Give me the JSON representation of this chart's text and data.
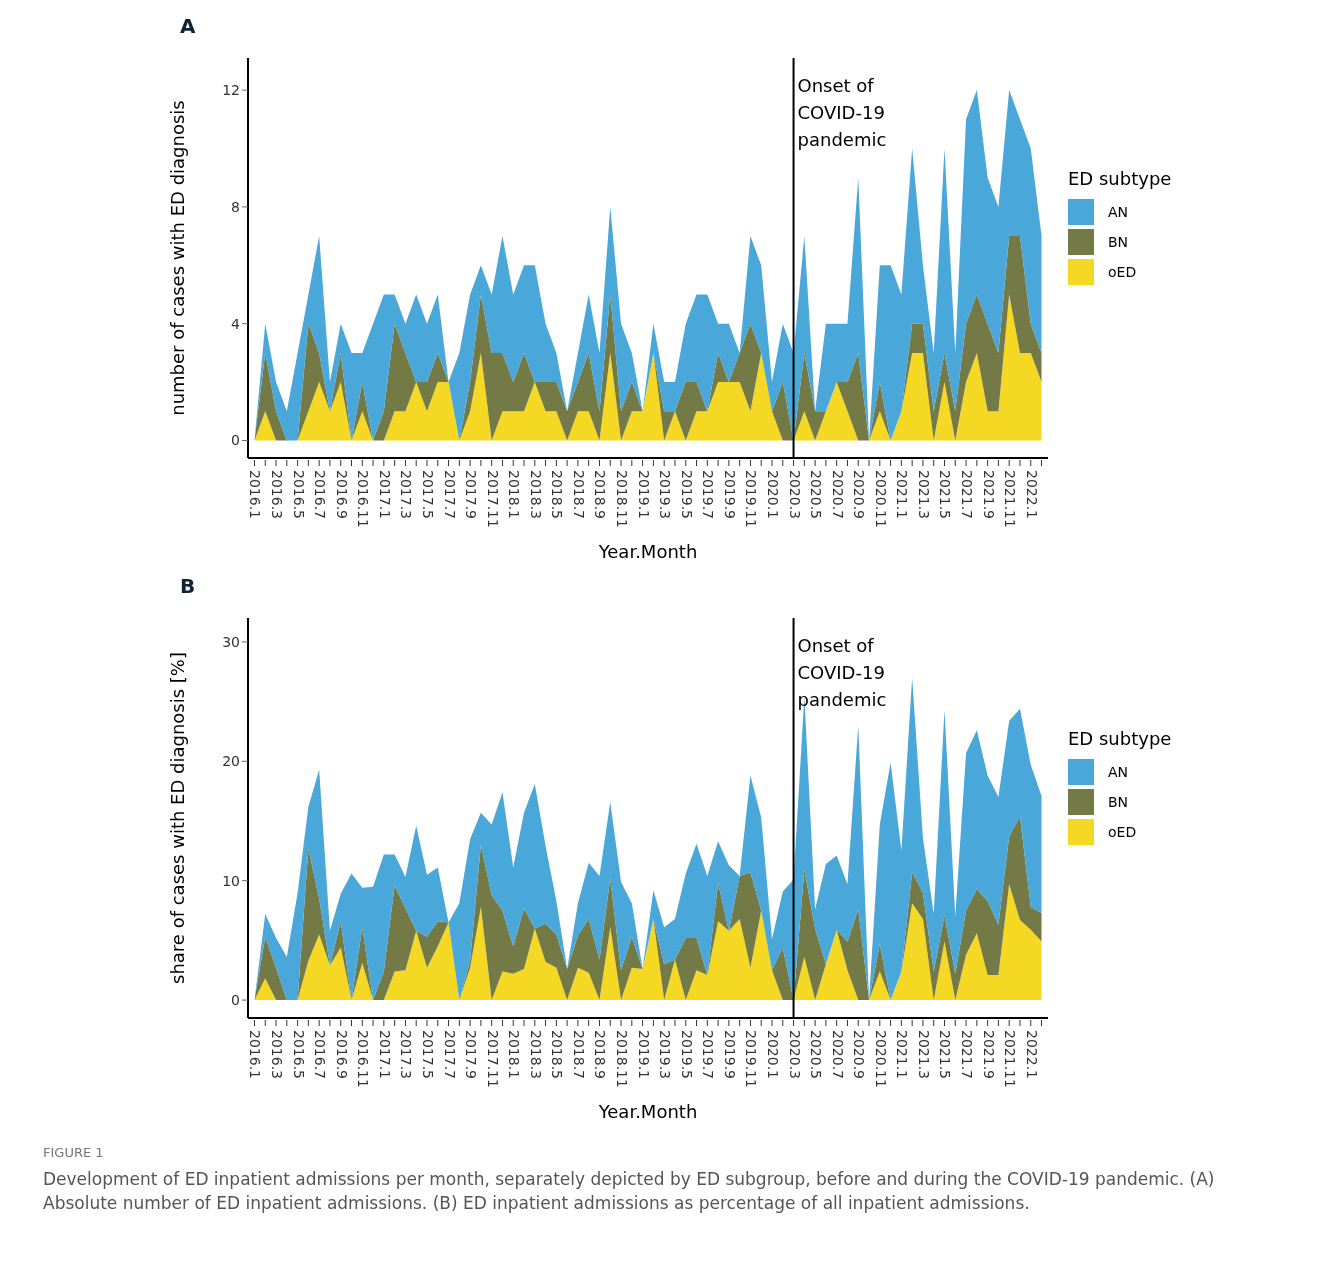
{
  "chart_data": [
    {
      "type": "area",
      "title": "A",
      "xlabel": "Year.Month",
      "ylabel": "number of cases with ED diagnosis",
      "legend_title": "ED subtype",
      "legend": "right",
      "stacked": true,
      "categories": [
        "2016.1",
        null,
        "2016.3",
        null,
        "2016.5",
        null,
        "2016.7",
        null,
        "2016.9",
        null,
        "2016.11",
        null,
        "2017.1",
        null,
        "2017.3",
        null,
        "2017.5",
        null,
        "2017.7",
        null,
        "2017.9",
        null,
        "2017.11",
        null,
        "2018.1",
        null,
        "2018.3",
        null,
        "2018.5",
        null,
        "2018.7",
        null,
        "2018.9",
        null,
        "2018.11",
        null,
        "2019.1",
        null,
        "2019.3",
        null,
        "2019.5",
        null,
        "2019.7",
        null,
        "2019.9",
        null,
        "2019.11",
        null,
        "2020.1",
        null,
        "2020.3",
        null,
        "2020.5",
        null,
        "2020.7",
        null,
        "2020.9",
        null,
        "2020.11",
        null,
        "2021.1",
        null,
        "2021.3",
        null,
        "2021.5",
        null,
        "2021.7",
        null,
        "2021.9",
        null,
        "2021.11",
        null,
        "2022.1",
        null
      ],
      "ylim": [
        -0.6,
        13.1
      ],
      "yticks": [
        0,
        4,
        8,
        12
      ],
      "ref_lines": [
        {
          "axis": "x",
          "value": "2020.3",
          "label": "Onset of COVID-19 pandemic"
        }
      ],
      "series": [
        {
          "name": "oED",
          "color": "#f5d824",
          "values": [
            0,
            1,
            0,
            0,
            0,
            1,
            2,
            1,
            2,
            0,
            1,
            0,
            0,
            1,
            1,
            2,
            1,
            2,
            2,
            0,
            1,
            3,
            0,
            1,
            1,
            1,
            2,
            1,
            1,
            0,
            1,
            1,
            0,
            3,
            0,
            1,
            1,
            3,
            0,
            1,
            0,
            1,
            1,
            2,
            2,
            2,
            1,
            3,
            1,
            0,
            0,
            1,
            0,
            1,
            2,
            1,
            0,
            0,
            1,
            0,
            1,
            3,
            3,
            0,
            2,
            0,
            2,
            3,
            1,
            1,
            5,
            3,
            3,
            2
          ]
        },
        {
          "name": "BN",
          "color": "#737a45",
          "values": [
            0,
            2,
            1,
            0,
            0,
            3,
            1,
            0,
            1,
            0,
            1,
            0,
            1,
            3,
            2,
            0,
            1,
            1,
            0,
            0,
            1,
            2,
            3,
            2,
            1,
            2,
            0,
            1,
            1,
            1,
            1,
            2,
            1,
            2,
            1,
            1,
            0,
            0,
            1,
            0,
            2,
            1,
            0,
            1,
            0,
            1,
            3,
            0,
            0,
            2,
            0,
            2,
            1,
            0,
            0,
            1,
            3,
            0,
            1,
            0,
            0,
            1,
            1,
            1,
            1,
            1,
            2,
            2,
            3,
            2,
            2,
            4,
            1,
            1
          ]
        },
        {
          "name": "AN",
          "color": "#4aa7d9",
          "values": [
            0,
            1,
            1,
            1,
            3,
            1,
            4,
            1,
            1,
            3,
            1,
            4,
            4,
            1,
            1,
            3,
            2,
            2,
            0,
            3,
            3,
            1,
            2,
            4,
            3,
            3,
            4,
            2,
            1,
            0,
            1,
            2,
            2,
            3,
            3,
            1,
            0,
            1,
            1,
            1,
            2,
            3,
            4,
            1,
            2,
            0,
            3,
            3,
            1,
            2,
            3,
            4,
            0,
            3,
            2,
            2,
            6,
            0,
            4,
            6,
            4,
            6,
            2,
            2,
            7,
            2,
            7,
            7,
            5,
            5,
            5,
            4,
            6,
            4
          ]
        }
      ]
    },
    {
      "type": "area",
      "title": "B",
      "xlabel": "Year.Month",
      "ylabel": "share of cases with ED diagnosis [%]",
      "legend_title": "ED subtype",
      "legend": "right",
      "stacked": true,
      "categories": [
        "2016.1",
        null,
        "2016.3",
        null,
        "2016.5",
        null,
        "2016.7",
        null,
        "2016.9",
        null,
        "2016.11",
        null,
        "2017.1",
        null,
        "2017.3",
        null,
        "2017.5",
        null,
        "2017.7",
        null,
        "2017.9",
        null,
        "2017.11",
        null,
        "2018.1",
        null,
        "2018.3",
        null,
        "2018.5",
        null,
        "2018.7",
        null,
        "2018.9",
        null,
        "2018.11",
        null,
        "2019.1",
        null,
        "2019.3",
        null,
        "2019.5",
        null,
        "2019.7",
        null,
        "2019.9",
        null,
        "2019.11",
        null,
        "2020.1",
        null,
        "2020.3",
        null,
        "2020.5",
        null,
        "2020.7",
        null,
        "2020.9",
        null,
        "2020.11",
        null,
        "2021.1",
        null,
        "2021.3",
        null,
        "2021.5",
        null,
        "2021.7",
        null,
        "2021.9",
        null,
        "2021.11",
        null,
        "2022.1",
        null
      ],
      "ylim": [
        -1.5,
        32
      ],
      "yticks": [
        0,
        10,
        20,
        30
      ],
      "ref_lines": [
        {
          "axis": "x",
          "value": "2020.3",
          "label": "Onset of COVID-19 pandemic"
        }
      ],
      "annotations": [
        "FIGURE 1",
        "Development of ED inpatient admissions per month, separately depicted by ED subgroup, before and during the COVID-19 pandemic. (A) Absolute number of ED inpatient admissions. (B) ED inpatient admissions as percentage of all inpatient admissions."
      ],
      "series": [
        {
          "name": "oED",
          "color": "#f5d824",
          "values": [
            0,
            1.8,
            0,
            0,
            0,
            3.3,
            5.5,
            2.9,
            4.4,
            0,
            3.1,
            0,
            0,
            2.4,
            2.5,
            5.8,
            2.7,
            4.5,
            6.5,
            0,
            2.7,
            7.8,
            0,
            2.4,
            2.2,
            2.6,
            6.0,
            3.2,
            2.7,
            0,
            2.7,
            2.3,
            0,
            6.1,
            0,
            2.7,
            2.6,
            6.8,
            0,
            3.4,
            0,
            2.5,
            2.1,
            6.6,
            5.8,
            6.8,
            2.7,
            7.5,
            2.5,
            0,
            0,
            3.6,
            0,
            3.0,
            5.9,
            2.5,
            0,
            0,
            2.4,
            0,
            2.4,
            8.1,
            6.8,
            0,
            4.9,
            0,
            3.8,
            5.6,
            2.1,
            2.1,
            9.7,
            6.7,
            5.9,
            4.9
          ]
        },
        {
          "name": "BN",
          "color": "#737a45",
          "values": [
            0,
            3.5,
            2.7,
            0,
            0,
            9.4,
            3.0,
            0,
            2.2,
            0,
            3.0,
            0,
            2.4,
            7.2,
            5.2,
            0,
            2.6,
            2.1,
            0,
            0,
            0.6,
            5.2,
            8.8,
            5.1,
            2.3,
            5.1,
            0,
            3.2,
            2.8,
            2.6,
            2.7,
            4.5,
            3.4,
            4.1,
            2.5,
            2.6,
            0,
            0,
            3.0,
            0,
            5.2,
            2.7,
            0,
            3.2,
            0,
            3.6,
            8.0,
            0,
            0,
            4.4,
            0,
            7.3,
            6.0,
            0,
            0,
            2.4,
            7.6,
            0,
            2.3,
            0,
            0,
            2.6,
            2.2,
            2.4,
            2.2,
            2.2,
            3.7,
            3.7,
            6.2,
            4.2,
            4.0,
            8.7,
            1.9,
            2.4
          ]
        },
        {
          "name": "AN",
          "color": "#4aa7d9",
          "values": [
            0,
            1.9,
            2.5,
            3.6,
            9.0,
            3.5,
            10.8,
            2.9,
            2.3,
            10.6,
            3.3,
            9.5,
            9.8,
            2.6,
            2.6,
            8.8,
            5.2,
            4.5,
            0,
            8.1,
            10.2,
            2.7,
            5.9,
            9.9,
            6.6,
            8.0,
            12.1,
            6.5,
            2.8,
            0,
            2.7,
            4.7,
            7.0,
            6.4,
            7.4,
            2.8,
            0,
            2.4,
            3.1,
            3.4,
            5.4,
            7.9,
            8.3,
            3.5,
            5.5,
            0,
            8.1,
            7.8,
            2.6,
            4.7,
            10.1,
            14.5,
            1.6,
            8.4,
            6.2,
            4.8,
            15.4,
            0,
            10.0,
            19.9,
            10.1,
            16.3,
            4.6,
            4.8,
            17.2,
            4.8,
            13.2,
            13.3,
            10.5,
            10.7,
            9.7,
            9.0,
            11.9,
            9.8
          ]
        }
      ]
    }
  ]
}
